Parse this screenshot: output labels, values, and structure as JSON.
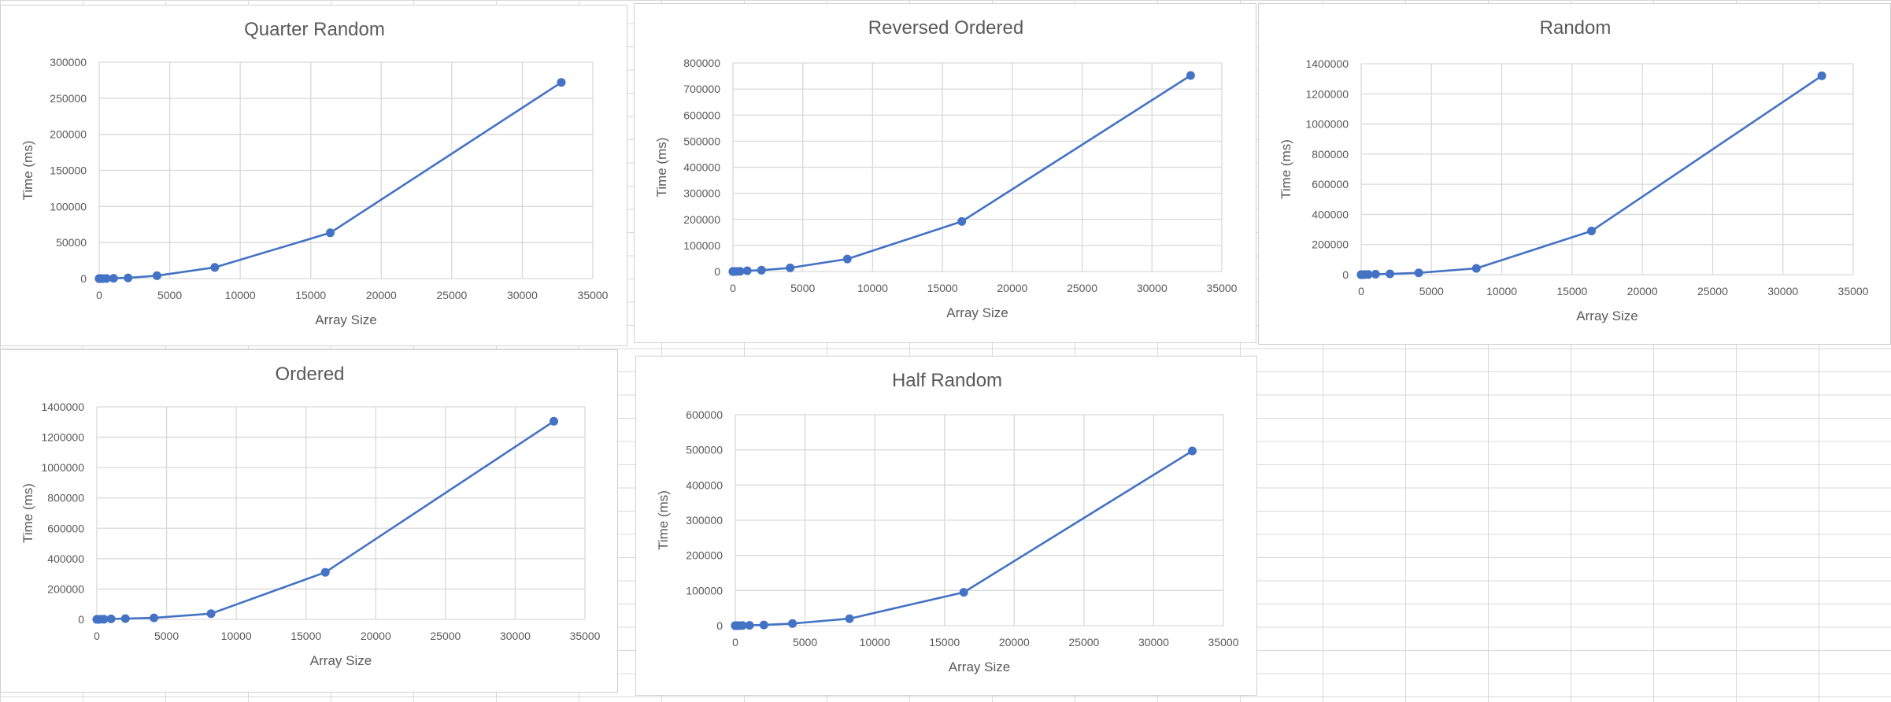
{
  "chart_data": [
    {
      "id": "quarter-random",
      "type": "scatter",
      "title": "Quarter Random",
      "xlabel": "Array Size",
      "ylabel": "Time (ms)",
      "xlim": [
        0,
        35000
      ],
      "ylim": [
        0,
        300000
      ],
      "xticks": [
        0,
        5000,
        10000,
        15000,
        20000,
        25000,
        30000,
        35000
      ],
      "yticks": [
        0,
        50000,
        100000,
        150000,
        200000,
        250000,
        300000
      ],
      "grid": true,
      "series": [
        {
          "color": "#4472c4",
          "x": [
            1,
            2,
            4,
            8,
            16,
            32,
            64,
            128,
            256,
            512,
            1024,
            2048,
            4096,
            8192,
            16384,
            32768
          ],
          "y": [
            0,
            0,
            0,
            0,
            0,
            0,
            0,
            0,
            50,
            150,
            400,
            1000,
            4000,
            15500,
            63500,
            272000
          ]
        }
      ]
    },
    {
      "id": "reversed-ordered",
      "type": "scatter",
      "title": "Reversed Ordered",
      "xlabel": "Array Size",
      "ylabel": "Time (ms)",
      "xlim": [
        0,
        35000
      ],
      "ylim": [
        0,
        800000
      ],
      "xticks": [
        0,
        5000,
        10000,
        15000,
        20000,
        25000,
        30000,
        35000
      ],
      "yticks": [
        0,
        100000,
        200000,
        300000,
        400000,
        500000,
        600000,
        700000,
        800000
      ],
      "grid": true,
      "series": [
        {
          "color": "#4472c4",
          "x": [
            1,
            2,
            4,
            8,
            16,
            32,
            64,
            128,
            256,
            512,
            1024,
            2048,
            4096,
            8192,
            16384,
            32768
          ],
          "y": [
            0,
            0,
            0,
            0,
            0,
            0,
            0,
            0,
            200,
            800,
            3000,
            5000,
            14000,
            48000,
            192000,
            752000
          ]
        }
      ]
    },
    {
      "id": "random",
      "type": "scatter",
      "title": "Random",
      "xlabel": "Array Size",
      "ylabel": "Time (ms)",
      "xlim": [
        0,
        35000
      ],
      "ylim": [
        0,
        1400000
      ],
      "xticks": [
        0,
        5000,
        10000,
        15000,
        20000,
        25000,
        30000,
        35000
      ],
      "yticks": [
        0,
        200000,
        400000,
        600000,
        800000,
        1000000,
        1200000,
        1400000
      ],
      "grid": true,
      "series": [
        {
          "color": "#4472c4",
          "x": [
            1,
            2,
            4,
            8,
            16,
            32,
            64,
            128,
            256,
            512,
            1024,
            2048,
            4096,
            8192,
            16384,
            32768
          ],
          "y": [
            0,
            0,
            0,
            0,
            0,
            0,
            0,
            0,
            300,
            1000,
            3000,
            5000,
            12000,
            42000,
            290000,
            1320000
          ]
        }
      ]
    },
    {
      "id": "ordered",
      "type": "scatter",
      "title": "Ordered",
      "xlabel": "Array Size",
      "ylabel": "Time (ms)",
      "xlim": [
        0,
        35000
      ],
      "ylim": [
        0,
        1400000
      ],
      "xticks": [
        0,
        5000,
        10000,
        15000,
        20000,
        25000,
        30000,
        35000
      ],
      "yticks": [
        0,
        200000,
        400000,
        600000,
        800000,
        1000000,
        1200000,
        1400000
      ],
      "grid": true,
      "series": [
        {
          "color": "#4472c4",
          "x": [
            1,
            2,
            4,
            8,
            16,
            32,
            64,
            128,
            256,
            512,
            1024,
            2048,
            4096,
            8192,
            16384,
            32768
          ],
          "y": [
            0,
            0,
            0,
            0,
            0,
            0,
            0,
            0,
            300,
            1000,
            3000,
            5000,
            10000,
            38000,
            310000,
            1305000
          ]
        }
      ]
    },
    {
      "id": "half-random",
      "type": "scatter",
      "title": "Half Random",
      "xlabel": "Array Size",
      "ylabel": "Time (ms)",
      "xlim": [
        0,
        35000
      ],
      "ylim": [
        0,
        600000
      ],
      "xticks": [
        0,
        5000,
        10000,
        15000,
        20000,
        25000,
        30000,
        35000
      ],
      "yticks": [
        0,
        100000,
        200000,
        300000,
        400000,
        500000,
        600000
      ],
      "grid": true,
      "series": [
        {
          "color": "#4472c4",
          "x": [
            1,
            2,
            4,
            8,
            16,
            32,
            64,
            128,
            256,
            512,
            1024,
            2048,
            4096,
            8192,
            16384,
            32768
          ],
          "y": [
            0,
            0,
            0,
            0,
            0,
            0,
            0,
            0,
            100,
            400,
            1000,
            2000,
            6000,
            20000,
            95000,
            497000
          ]
        }
      ]
    }
  ]
}
